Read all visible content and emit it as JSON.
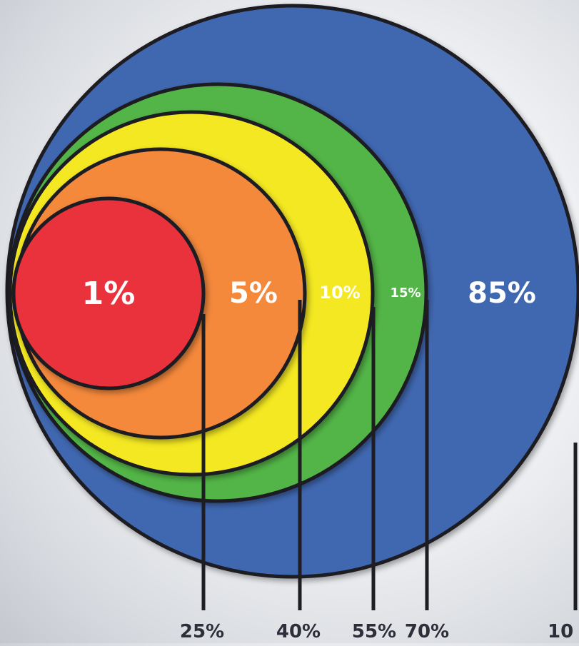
{
  "diagram": {
    "rings": [
      {
        "id": "blue",
        "label": "85%",
        "color": "#3f67b1"
      },
      {
        "id": "green",
        "label": "15%",
        "color": "#52b547"
      },
      {
        "id": "yellow",
        "label": "10%",
        "color": "#f4e820"
      },
      {
        "id": "orange",
        "label": "5%",
        "color": "#f4883a"
      },
      {
        "id": "red",
        "label": "1%",
        "color": "#e9313a"
      }
    ],
    "markers": [
      {
        "label": "25%"
      },
      {
        "label": "40%"
      },
      {
        "label": "55%"
      },
      {
        "label": "70%"
      },
      {
        "label": "10"
      }
    ],
    "outline_color": "#1d1d22"
  }
}
